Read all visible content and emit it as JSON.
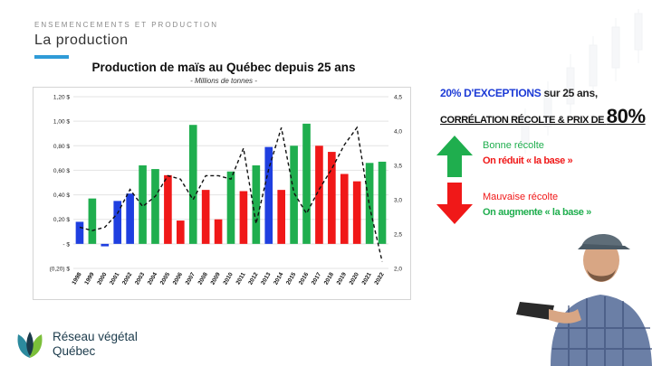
{
  "header": {
    "kicker": "ENSEMENCEMENTS ET PRODUCTION",
    "title": "La production"
  },
  "colors": {
    "blue": "#1f3fe0",
    "green": "#1fae4e",
    "red": "#f01818",
    "accent": "#2f9bd7"
  },
  "callout": {
    "line1_blue": "20% D'EXCEPTIONS",
    "line1_rest": " sur 25 ans,",
    "line2_text": "CORRÉLATION RÉCOLTE & PRIX DE ",
    "line2_big": "80%"
  },
  "legend": {
    "good_label": "Bonne récolte",
    "good_action": "On réduit « la base »",
    "bad_label": "Mauvaise récolte",
    "bad_action": "On augmente « la base »",
    "up_icon": "arrow-up-icon",
    "down_icon": "arrow-down-icon"
  },
  "brand": {
    "line1": "Réseau végétal",
    "line2": "Québec"
  },
  "chart_data": {
    "type": "bar",
    "title": "Production de maïs au Québec depuis 25 ans",
    "subtitle": "- Millions de tonnes -",
    "categories": [
      "1998",
      "1999",
      "2000",
      "2001",
      "2002",
      "2003",
      "2004",
      "2005",
      "2006",
      "2007",
      "2008",
      "2009",
      "2010",
      "2011",
      "2012",
      "2013",
      "2014",
      "2015",
      "2016",
      "2017",
      "2018",
      "2019",
      "2020",
      "2021",
      "2022"
    ],
    "values": [
      0.18,
      0.37,
      -0.02,
      0.35,
      0.41,
      0.64,
      0.61,
      0.56,
      0.19,
      0.97,
      0.44,
      0.2,
      0.59,
      0.43,
      0.64,
      0.79,
      0.44,
      0.8,
      0.98,
      0.8,
      0.75,
      0.57,
      0.51,
      0.66,
      0.67
    ],
    "bar_colors": [
      "blue",
      "green",
      "blue",
      "blue",
      "blue",
      "green",
      "green",
      "red",
      "red",
      "green",
      "red",
      "red",
      "green",
      "red",
      "green",
      "blue",
      "red",
      "green",
      "green",
      "red",
      "red",
      "red",
      "red",
      "green",
      "green"
    ],
    "ylim": [
      -0.2,
      1.2
    ],
    "yticks": [
      "(0,20) $",
      "-   $",
      "0,20 $",
      "0,40 $",
      "0,60 $",
      "0,80 $",
      "1,00 $",
      "1,20 $"
    ],
    "ytick_values": [
      -0.2,
      0,
      0.2,
      0.4,
      0.6,
      0.8,
      1.0,
      1.2
    ],
    "secondary_series": {
      "style": "dashed",
      "values": [
        2.6,
        2.55,
        2.6,
        2.8,
        3.15,
        2.9,
        3.05,
        3.35,
        3.3,
        3.0,
        3.35,
        3.35,
        3.3,
        3.75,
        2.65,
        3.45,
        4.05,
        3.1,
        2.8,
        3.15,
        3.45,
        3.8,
        4.05,
        2.9,
        2.1
      ],
      "y2lim": [
        2.0,
        4.5
      ],
      "y2ticks": [
        "2,0",
        "2,5",
        "3,0",
        "3,5",
        "4,0",
        "4,5"
      ],
      "y2tick_values": [
        2.0,
        2.5,
        3.0,
        3.5,
        4.0,
        4.5
      ]
    },
    "grid": true,
    "legend": "none"
  }
}
